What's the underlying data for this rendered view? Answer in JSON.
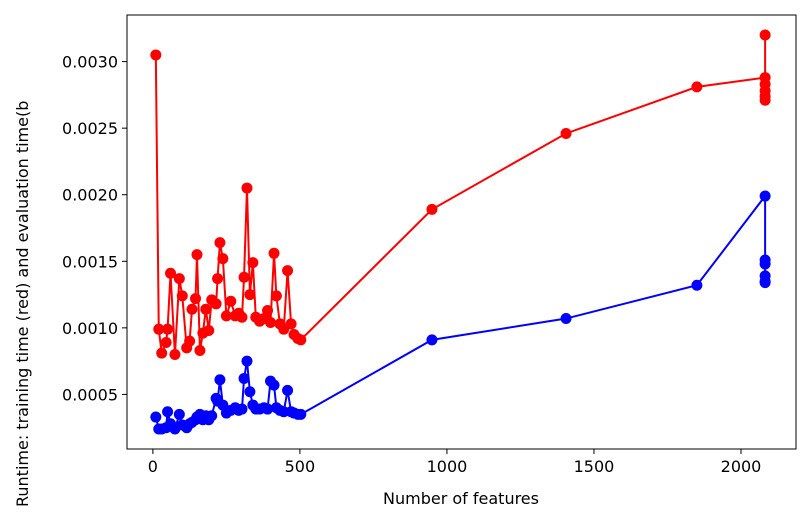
{
  "chart_data": {
    "type": "line",
    "xlabel": "Number of features",
    "ylabel": "Runtime: training time (red) and evaluation time(b",
    "x": [
      10,
      20,
      30,
      45,
      50,
      60,
      75,
      90,
      100,
      115,
      125,
      133,
      145,
      150,
      160,
      170,
      180,
      190,
      200,
      215,
      220,
      228,
      238,
      250,
      265,
      280,
      292,
      303,
      310,
      320,
      330,
      340,
      350,
      363,
      378,
      390,
      400,
      412,
      420,
      432,
      445,
      458,
      470,
      480,
      493,
      503,
      949,
      1405,
      1850,
      2082,
      2082,
      2082,
      2082,
      2082,
      2082
    ],
    "series": [
      {
        "color": "#ff0000",
        "values": [
          0.00305,
          0.00099,
          0.00081,
          0.00089,
          0.00099,
          0.00141,
          0.0008,
          0.00137,
          0.00124,
          0.00085,
          0.0009,
          0.00114,
          0.00122,
          0.00155,
          0.00083,
          0.00096,
          0.00114,
          0.00098,
          0.00121,
          0.00118,
          0.00137,
          0.00164,
          0.00152,
          0.00109,
          0.0012,
          0.00109,
          0.00111,
          0.00108,
          0.00138,
          0.00205,
          0.00125,
          0.00149,
          0.00108,
          0.00105,
          0.00107,
          0.00113,
          0.00104,
          0.00156,
          0.00124,
          0.00103,
          0.00099,
          0.00143,
          0.00103,
          0.00095,
          0.00092,
          0.00091,
          0.00189,
          0.00246,
          0.00281,
          0.00288,
          0.0032,
          0.00283,
          0.00278,
          0.00274,
          0.00271
        ]
      },
      {
        "color": "#0000ff",
        "values": [
          0.00033,
          0.00024,
          0.00024,
          0.00025,
          0.00037,
          0.00028,
          0.00024,
          0.00035,
          0.00027,
          0.00025,
          0.00028,
          0.00029,
          0.00031,
          0.00033,
          0.00035,
          0.00031,
          0.00034,
          0.00031,
          0.00034,
          0.00047,
          0.00045,
          0.00061,
          0.00042,
          0.00036,
          0.00038,
          0.0004,
          0.00038,
          0.00039,
          0.00062,
          0.00075,
          0.00052,
          0.00042,
          0.00039,
          0.00039,
          0.0004,
          0.00039,
          0.0006,
          0.00057,
          0.0004,
          0.00038,
          0.00037,
          0.00053,
          0.00037,
          0.00036,
          0.00035,
          0.00035,
          0.00091,
          0.00107,
          0.00132,
          0.00199,
          0.00151,
          0.00148,
          0.00139,
          0.00135,
          0.00134
        ]
      }
    ],
    "xlim": [
      -88,
      2187
    ],
    "ylim": [
      9e-05,
      0.00335
    ],
    "xticks": [
      0,
      500,
      1000,
      1500,
      2000
    ],
    "yticks": [
      0.0005,
      {
        "value": 0.001,
        "label": "0.0010"
      },
      {
        "value": 0.0015,
        "label": "0.0015"
      },
      {
        "value": 0.002,
        "label": "0.0020"
      },
      {
        "value": 0.0025,
        "label": "0.0025"
      },
      {
        "value": 0.003,
        "label": "0.0030"
      }
    ],
    "grid": false
  }
}
